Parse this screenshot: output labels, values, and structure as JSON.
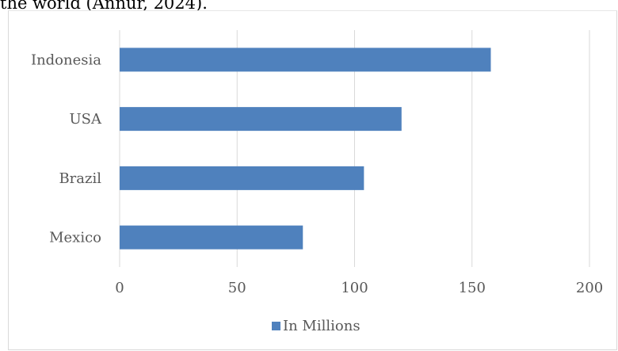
{
  "page": {
    "caption_fragment": "the world (Annur, 2024)."
  },
  "chart_data": {
    "type": "bar",
    "orientation": "horizontal",
    "categories": [
      "Indonesia",
      "USA",
      "Brazil",
      "Mexico"
    ],
    "series": [
      {
        "name": "In Millions",
        "values": [
          158,
          120,
          104,
          78
        ],
        "color": "#4f81bd"
      }
    ],
    "xlim": [
      0,
      200
    ],
    "xticks": [
      0,
      50,
      100,
      150,
      200
    ],
    "grid": true,
    "legend": "bottom",
    "title": "",
    "xlabel": "",
    "ylabel": ""
  }
}
